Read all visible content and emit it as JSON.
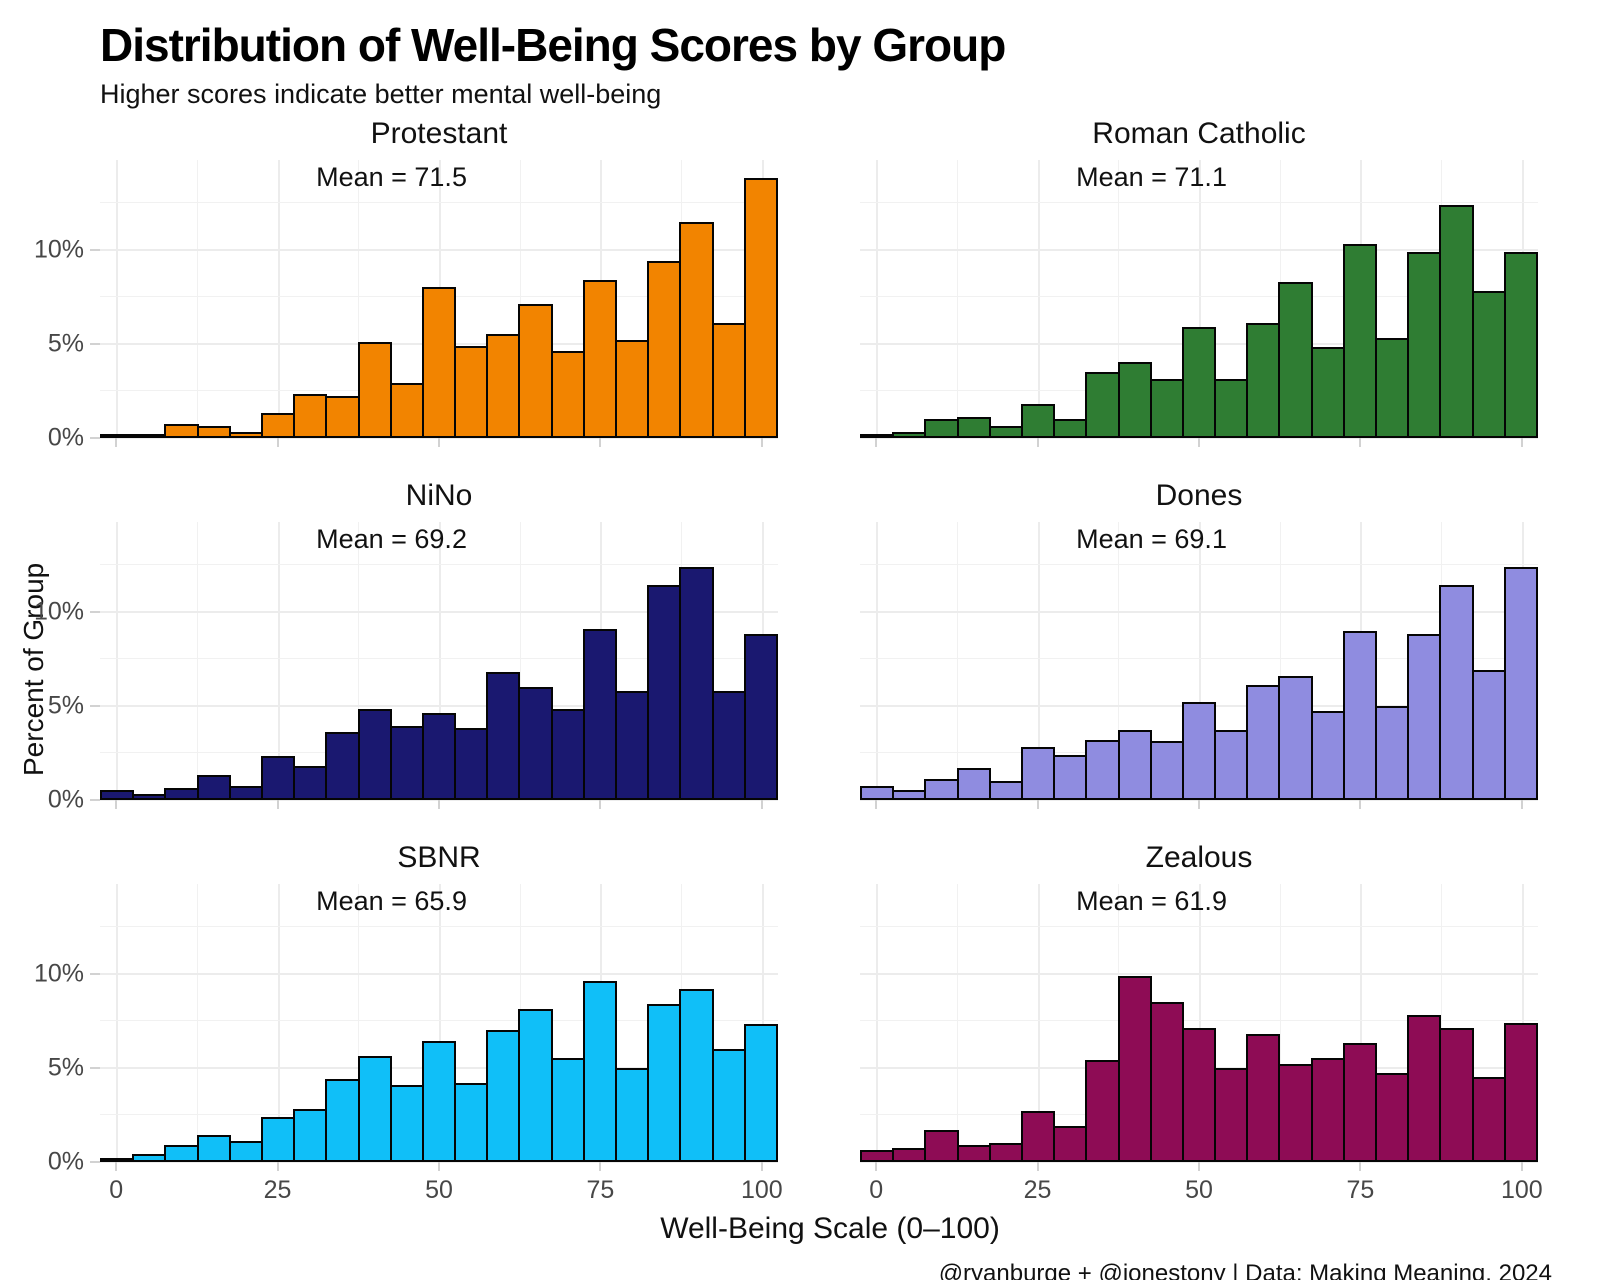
{
  "header": {
    "title": "Distribution of Well-Being Scores by Group",
    "subtitle": "Higher scores indicate better mental well-being"
  },
  "figure": {
    "ylabel": "Percent of Group",
    "xlabel": "Well-Being Scale (0–100)",
    "caption": "@ryanburge + @jonestony | Data: Making Meaning, 2024"
  },
  "chart_data": {
    "type": "bar",
    "subtype": "faceted-histograms",
    "facet_layout": "3 rows x 2 columns",
    "grid": true,
    "bin_width": 5,
    "bin_centers": [
      0,
      5,
      10,
      15,
      20,
      25,
      30,
      35,
      40,
      45,
      50,
      55,
      60,
      65,
      70,
      75,
      80,
      85,
      90,
      95,
      100
    ],
    "x_domain": [
      -2.5,
      102.5
    ],
    "x_ticks": [
      0,
      25,
      50,
      75,
      100
    ],
    "x_minor_gridlines": [
      12.5,
      37.5,
      62.5,
      87.5
    ],
    "y_major_gridlines": [
      0,
      5,
      10
    ],
    "y_minor_gridlines": [
      2.5,
      7.5,
      12.5
    ],
    "y_tick_labels": [
      "0%",
      "5%",
      "10%"
    ],
    "y_tick_values": [
      0,
      5,
      10
    ],
    "ylim": [
      0,
      14.8
    ],
    "ylabel": "Percent of Group",
    "xlabel": "Well-Being Scale (0–100)",
    "panels": [
      {
        "title": "Protestant",
        "mean": 71.5,
        "mean_label": "Mean = 71.5",
        "color": "#F28400",
        "values": [
          0.1,
          0.2,
          0.7,
          0.6,
          0.3,
          1.3,
          2.3,
          2.2,
          5.1,
          2.9,
          8.0,
          4.9,
          5.5,
          7.1,
          4.6,
          8.4,
          5.2,
          9.4,
          11.5,
          6.1,
          13.8
        ]
      },
      {
        "title": "Roman Catholic",
        "mean": 71.1,
        "mean_label": "Mean = 71.1",
        "color": "#2F7D33",
        "values": [
          0.1,
          0.3,
          1.0,
          1.1,
          0.6,
          1.8,
          1.0,
          3.5,
          4.0,
          3.1,
          5.9,
          3.1,
          6.1,
          8.3,
          4.8,
          10.3,
          5.3,
          9.9,
          12.4,
          7.8,
          9.9
        ]
      },
      {
        "title": "NiNo",
        "mean": 69.2,
        "mean_label": "Mean = 69.2",
        "color": "#1A1870",
        "values": [
          0.5,
          0.3,
          0.6,
          1.3,
          0.7,
          2.3,
          1.8,
          3.6,
          4.8,
          3.9,
          4.6,
          3.8,
          6.8,
          6.0,
          4.8,
          9.1,
          5.8,
          11.4,
          12.4,
          5.8,
          8.8
        ]
      },
      {
        "title": "Dones",
        "mean": 69.1,
        "mean_label": "Mean = 69.1",
        "color": "#8F8CE0",
        "values": [
          0.7,
          0.5,
          1.1,
          1.7,
          1.0,
          2.8,
          2.4,
          3.2,
          3.7,
          3.1,
          5.2,
          3.7,
          6.1,
          6.6,
          4.7,
          9.0,
          5.0,
          8.8,
          11.4,
          6.9,
          12.4
        ]
      },
      {
        "title": "SBNR",
        "mean": 65.9,
        "mean_label": "Mean = 65.9",
        "color": "#10BFF8",
        "values": [
          0.2,
          0.4,
          0.9,
          1.4,
          1.1,
          2.4,
          2.8,
          4.4,
          5.6,
          4.1,
          6.4,
          4.2,
          7.0,
          8.1,
          5.5,
          9.6,
          5.0,
          8.4,
          9.2,
          6.0,
          7.3
        ]
      },
      {
        "title": "Zealous",
        "mean": 61.9,
        "mean_label": "Mean = 61.9",
        "color": "#8E0C55",
        "values": [
          0.6,
          0.7,
          1.7,
          0.9,
          1.0,
          2.7,
          1.9,
          5.4,
          9.9,
          8.5,
          7.1,
          5.0,
          6.8,
          5.2,
          5.5,
          6.3,
          4.7,
          7.8,
          7.1,
          4.5,
          7.4
        ]
      }
    ]
  }
}
